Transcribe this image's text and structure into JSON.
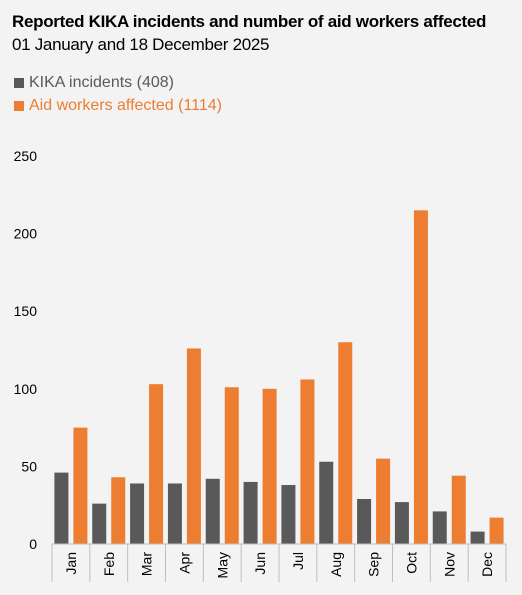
{
  "colors": {
    "incidents": "#595959",
    "affected": "#ed7d31",
    "axis": "#bfbfbf"
  },
  "chart_data": {
    "type": "bar",
    "title": "Reported KIKA incidents and number of aid workers affected",
    "subtitle": "01 January and 18 December 2025",
    "categories": [
      "Jan",
      "Feb",
      "Mar",
      "Apr",
      "May",
      "Jun",
      "Jul",
      "Aug",
      "Sep",
      "Oct",
      "Nov",
      "Dec"
    ],
    "series": [
      {
        "name": "KIKA incidents (408)",
        "values": [
          46,
          26,
          39,
          39,
          42,
          40,
          38,
          53,
          29,
          27,
          21,
          8
        ]
      },
      {
        "name": "Aid workers affected (1114)",
        "values": [
          75,
          43,
          103,
          126,
          101,
          100,
          106,
          130,
          55,
          215,
          44,
          17
        ]
      }
    ],
    "yticks": [
      0,
      50,
      100,
      150,
      200,
      250
    ],
    "ylim": [
      0,
      250
    ],
    "grid": false,
    "legend_position": "top-left"
  }
}
